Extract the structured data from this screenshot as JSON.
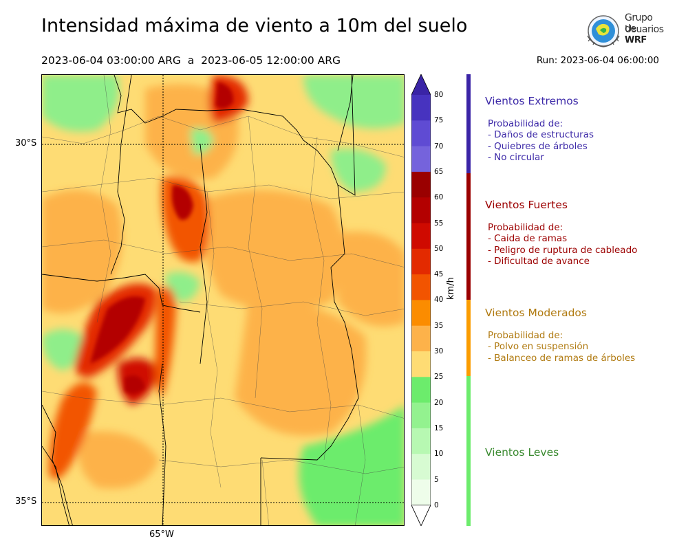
{
  "header": {
    "title": "Intensidad máxima de viento a 10m del suelo",
    "period": "2023-06-04 03:00:00 ARG  a  2023-06-05 12:00:00 ARG",
    "run": "Run: 2023-06-04 06:00:00"
  },
  "logo": {
    "line1": "Grupo de",
    "line2": "Usuarios",
    "line3": "WRF"
  },
  "map": {
    "lat_labels": [
      "30°S",
      "35°S"
    ],
    "lon_label": "65°W"
  },
  "colorbar": {
    "unit": "km/h",
    "ticks": [
      "80",
      "75",
      "70",
      "65",
      "60",
      "55",
      "50",
      "45",
      "40",
      "35",
      "30",
      "25",
      "20",
      "15",
      "10",
      "5",
      "0"
    ],
    "colors": [
      "#3a24a6",
      "#4733bf",
      "#5f4bd3",
      "#7563dc",
      "#9a0000",
      "#b30000",
      "#cf0a00",
      "#e32a00",
      "#f25400",
      "#fb8c00",
      "#fdb24a",
      "#fedc74",
      "#6cec6c",
      "#93f28f",
      "#b7f8b2",
      "#d7fbd2",
      "#eefdea"
    ]
  },
  "severity": [
    {
      "title": "Vientos Extremos",
      "color": "#3d2aa8",
      "lines": [
        "Probabilidad de:",
        "- Daños de estructuras",
        "- Quiebres de árboles",
        "- No circular"
      ]
    },
    {
      "title": "Vientos Fuertes",
      "color": "#9c0000",
      "lines": [
        "Probabilidad de:",
        "- Caida de ramas",
        "- Peligro de ruptura de cableado",
        "- Dificultad de avance"
      ]
    },
    {
      "title": "Vientos Moderados",
      "color": "#b07a10",
      "lines": [
        "Probabilidad de:",
        "- Polvo en suspensión",
        "- Balanceo de ramas de árboles"
      ]
    },
    {
      "title": "Vientos Leves",
      "color": "#3a8a30",
      "lines": []
    }
  ]
}
